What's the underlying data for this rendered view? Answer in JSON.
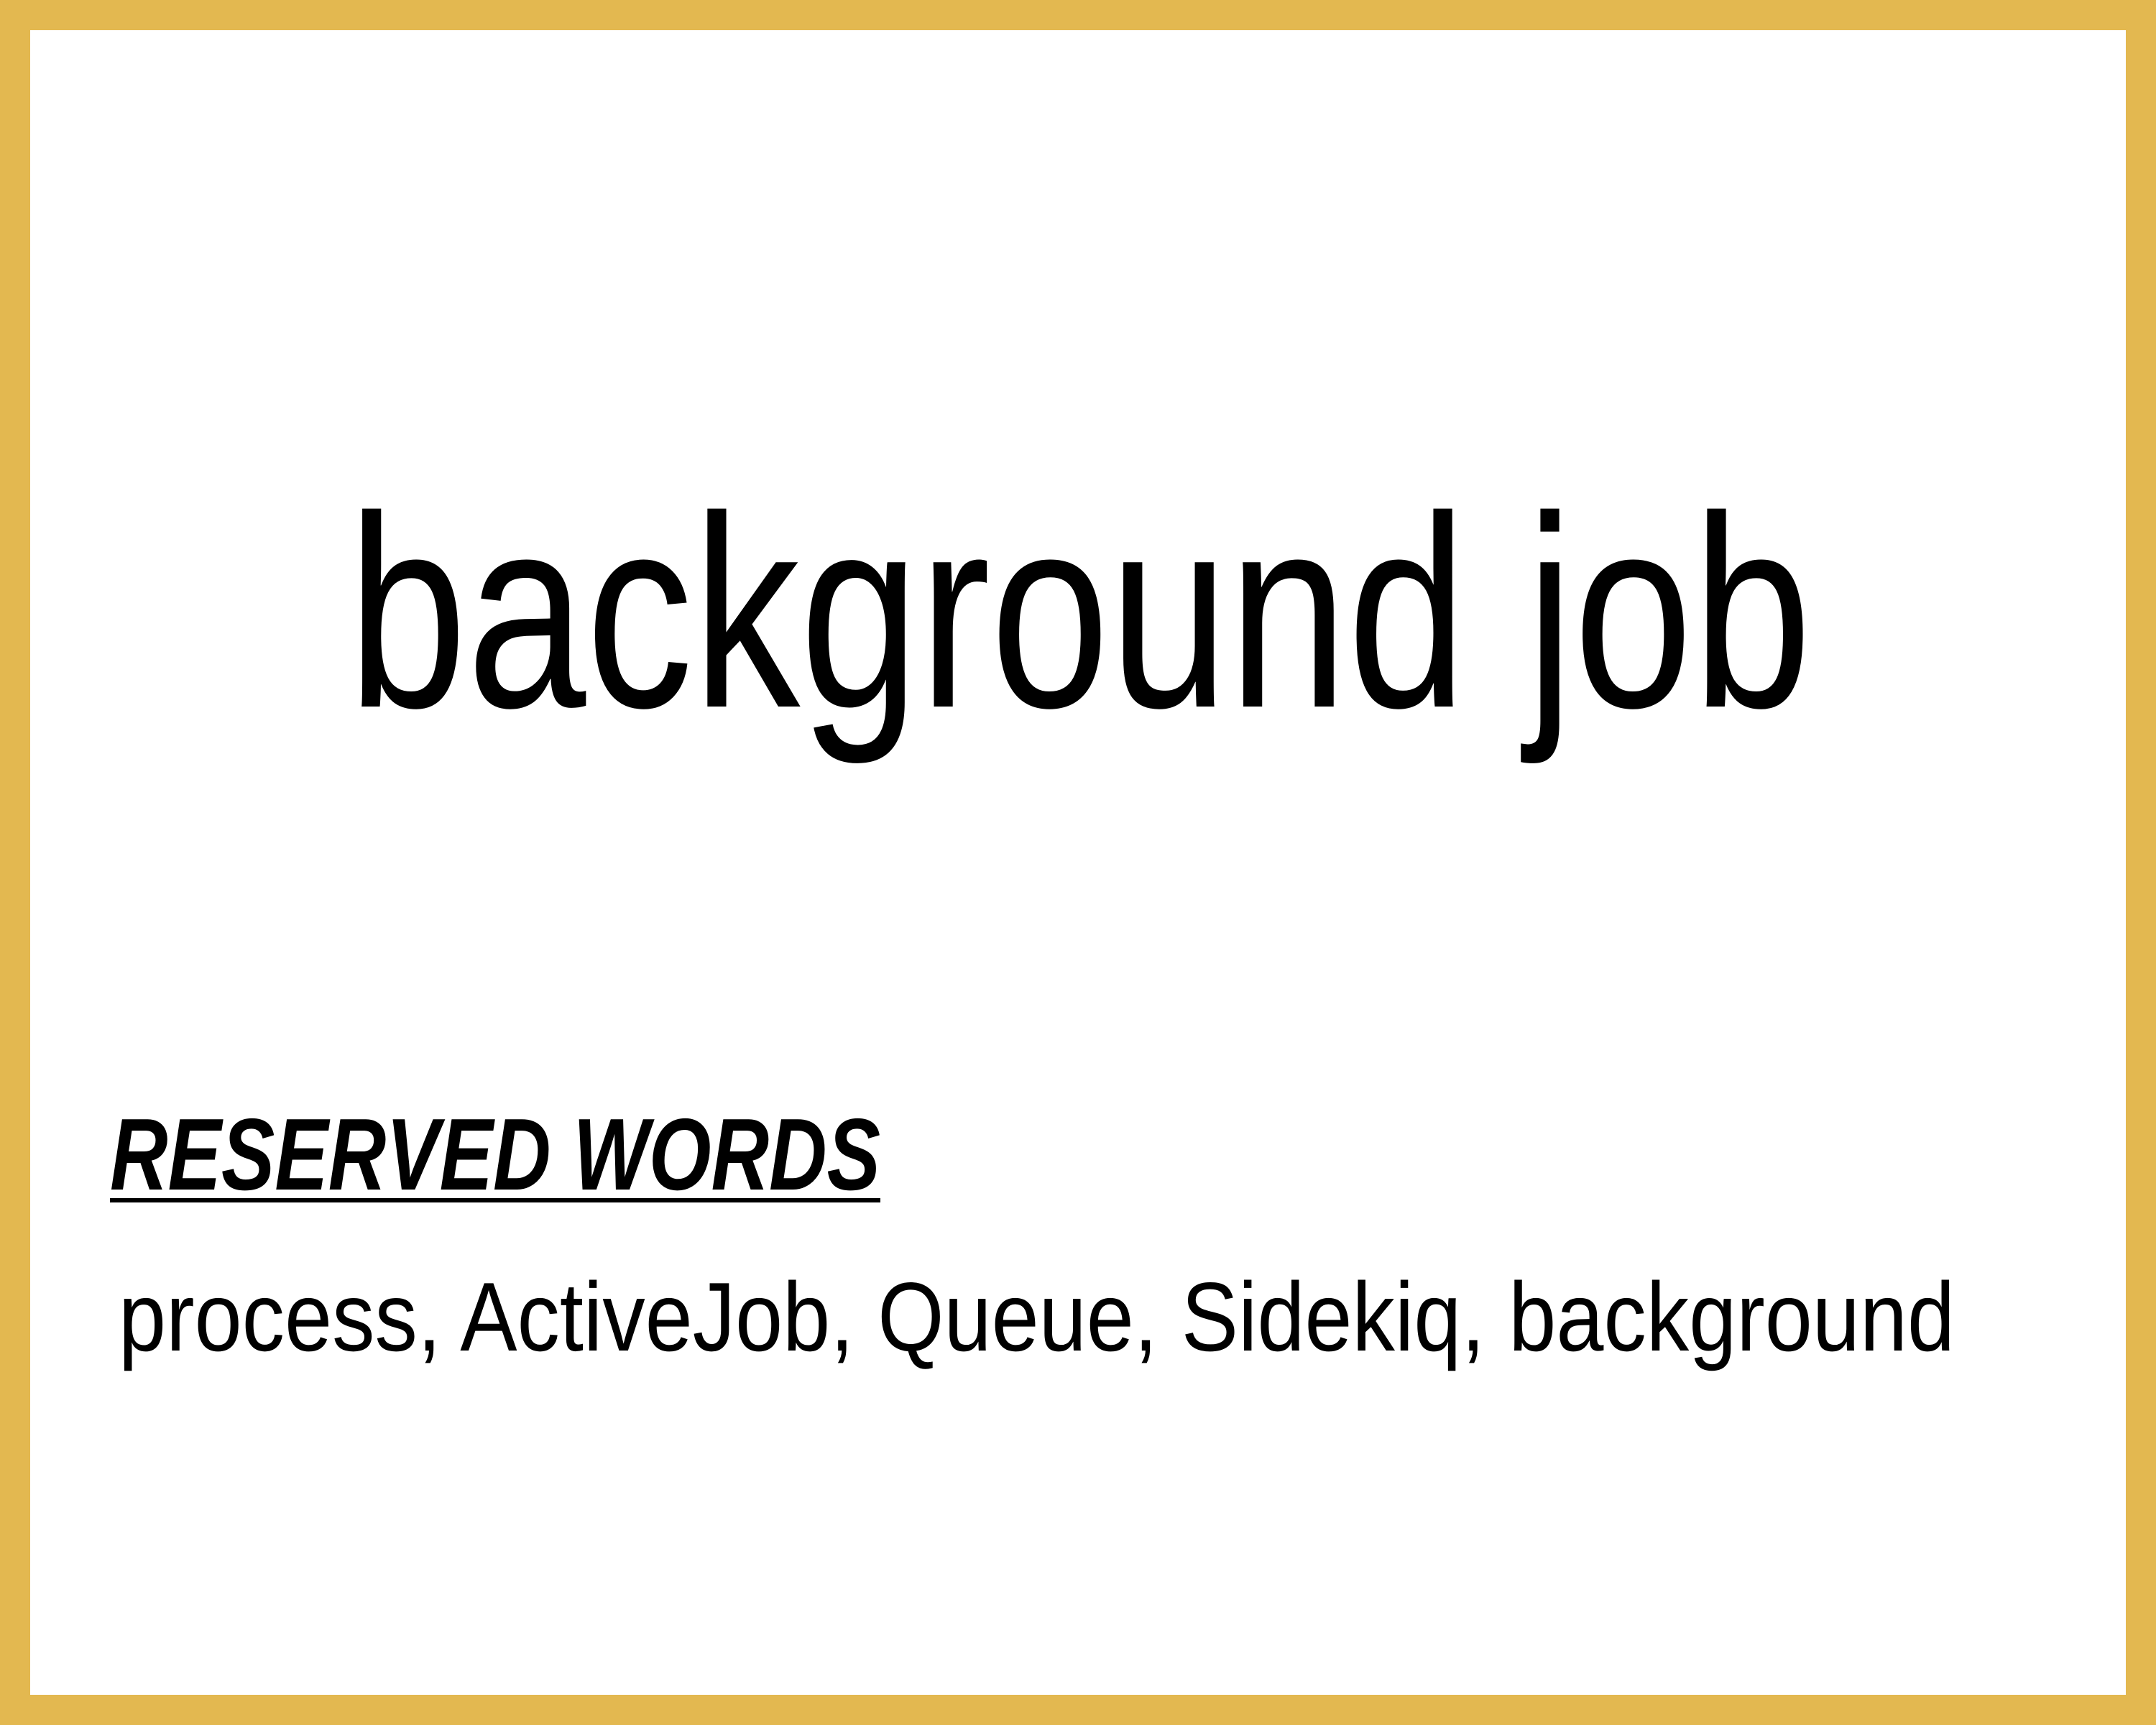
{
  "title": "background job",
  "section": {
    "heading": "RESERVED WORDS",
    "text": "process, ActiveJob, Queue, Sidekiq, background"
  }
}
